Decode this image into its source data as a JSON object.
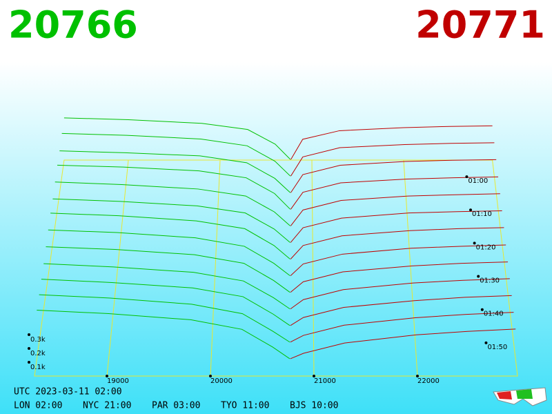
{
  "chart_data": {
    "type": "depth3d",
    "bid_price": 20766,
    "ask_price": 20771,
    "bid_color": "#00c000",
    "ask_color": "#c00000",
    "footer_utc": "UTC 2023-03-11 02:00",
    "footer_cities": [
      "LON 02:00",
      "NYC 21:00",
      "PAR 03:00",
      "TYO 11:00",
      "BJS 10:00"
    ],
    "xlim": [
      18300,
      22967
    ],
    "xticks": [
      19000,
      20000,
      21000,
      22000
    ],
    "tlim": [
      55,
      120
    ],
    "tticks": [
      {
        "value": 60,
        "label": "01:00"
      },
      {
        "value": 70,
        "label": "01:10"
      },
      {
        "value": 80,
        "label": "01:20"
      },
      {
        "value": 90,
        "label": "01:30"
      },
      {
        "value": 100,
        "label": "01:40"
      },
      {
        "value": 110,
        "label": "01:50"
      }
    ],
    "zticks": [
      {
        "value": 100,
        "label": "0.1k"
      },
      {
        "value": 200,
        "label": "0.2k"
      },
      {
        "value": 300,
        "label": "0.3k"
      }
    ],
    "times": [
      55,
      60,
      65,
      70,
      75,
      80,
      85,
      90,
      95,
      100,
      105,
      110,
      115
    ],
    "bids": {
      "prices": [
        18300,
        19000,
        19800,
        20300,
        20600,
        20766
      ],
      "snapshots": [
        [
          345,
          330,
          300,
          250,
          130,
          5
        ],
        [
          350,
          335,
          305,
          250,
          125,
          5
        ],
        [
          340,
          325,
          300,
          245,
          120,
          5
        ],
        [
          355,
          340,
          310,
          255,
          130,
          5
        ],
        [
          350,
          330,
          295,
          240,
          115,
          5
        ],
        [
          345,
          325,
          290,
          235,
          110,
          5
        ],
        [
          360,
          340,
          300,
          240,
          110,
          5
        ],
        [
          355,
          335,
          295,
          230,
          100,
          5
        ],
        [
          350,
          330,
          290,
          225,
          95,
          5
        ],
        [
          345,
          320,
          280,
          215,
          90,
          5
        ],
        [
          350,
          325,
          285,
          220,
          90,
          5
        ],
        [
          355,
          330,
          285,
          215,
          85,
          5
        ],
        [
          360,
          335,
          290,
          220,
          90,
          5
        ]
      ]
    },
    "asks": {
      "prices": [
        20771,
        20900,
        21300,
        22000,
        22500,
        22967
      ],
      "snapshots": [
        [
          5,
          170,
          240,
          265,
          275,
          280
        ],
        [
          5,
          160,
          235,
          260,
          270,
          275
        ],
        [
          5,
          150,
          225,
          255,
          265,
          270
        ],
        [
          5,
          140,
          215,
          245,
          255,
          262
        ],
        [
          5,
          130,
          205,
          240,
          250,
          258
        ],
        [
          5,
          120,
          195,
          235,
          245,
          252
        ],
        [
          5,
          110,
          185,
          225,
          240,
          248
        ],
        [
          5,
          95,
          170,
          215,
          230,
          240
        ],
        [
          5,
          85,
          160,
          205,
          225,
          235
        ],
        [
          5,
          75,
          150,
          200,
          220,
          232
        ],
        [
          5,
          65,
          140,
          190,
          215,
          228
        ],
        [
          5,
          55,
          130,
          185,
          210,
          225
        ],
        [
          5,
          45,
          120,
          180,
          205,
          222
        ]
      ]
    }
  }
}
